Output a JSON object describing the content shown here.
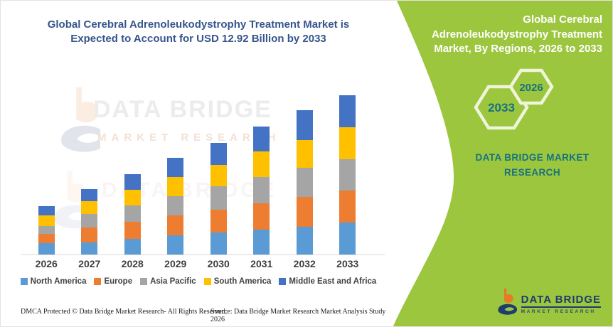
{
  "colors": {
    "green": "#9cc63e",
    "teal": "#17727f",
    "title_blue": "#36558c",
    "navy": "#1e3c6e",
    "logo_orange": "#e87a27"
  },
  "left_panel": {
    "title_lines": [
      "Global Cerebral Adrenoleukodystrophy Treatment Market is",
      "Expected to Account for USD 12.92 Billion by 2033"
    ],
    "watermark": {
      "brand": "DATA BRIDGE",
      "sub": "MARKET RESEARCH",
      "ghost": "DATA BRIDGE"
    },
    "footer": {
      "dmca": "DMCA Protected © Data Bridge Market Research-  All Rights Reserved.",
      "source": "Source: Data Bridge Market Research  Market Analysis Study 2026"
    }
  },
  "right_panel": {
    "title": "Global Cerebral Adrenoleukodystrophy Treatment Market, By Regions, 2026 to 2033",
    "hexagons": [
      {
        "label": "2033"
      },
      {
        "label": "2026"
      }
    ],
    "brand_line1": "DATA BRIDGE MARKET",
    "brand_line2": "RESEARCH",
    "logo": {
      "name": "DATA BRIDGE",
      "sub": "MARKET RESEARCH"
    }
  },
  "chart_data": {
    "type": "bar",
    "stacked": true,
    "title": "Global Cerebral Adrenoleukodystrophy Treatment Market is Expected to Account for USD 12.92 Billion by 2033",
    "unit": "USD Billion",
    "categories": [
      "2026",
      "2027",
      "2028",
      "2029",
      "2030",
      "2031",
      "2032",
      "2033"
    ],
    "series": [
      {
        "name": "North America",
        "color": "#5B9BD5",
        "values": [
          0.91,
          1.0,
          1.3,
          1.55,
          1.78,
          2.03,
          2.27,
          2.61
        ]
      },
      {
        "name": "Europe",
        "color": "#ED7D31",
        "values": [
          0.77,
          1.2,
          1.35,
          1.6,
          1.84,
          2.13,
          2.42,
          2.56
        ]
      },
      {
        "name": "Asia Pacific",
        "color": "#A5A5A5",
        "values": [
          0.64,
          1.08,
          1.32,
          1.58,
          1.9,
          2.13,
          2.32,
          2.55
        ]
      },
      {
        "name": "South America",
        "color": "#FFC000",
        "values": [
          0.85,
          1.05,
          1.3,
          1.57,
          1.74,
          2.07,
          2.28,
          2.58
        ]
      },
      {
        "name": "Middle East and Africa",
        "color": "#4472C4",
        "values": [
          0.74,
          0.97,
          1.28,
          1.53,
          1.79,
          2.01,
          2.43,
          2.62
        ]
      }
    ],
    "totals": [
      3.91,
      5.3,
      6.55,
      7.83,
      9.05,
      10.37,
      11.72,
      12.92
    ],
    "ylim": [
      0,
      12.92
    ],
    "grid": false,
    "y_axis_shown": false,
    "legend_position": "bottom",
    "xlabel": "",
    "ylabel": ""
  }
}
